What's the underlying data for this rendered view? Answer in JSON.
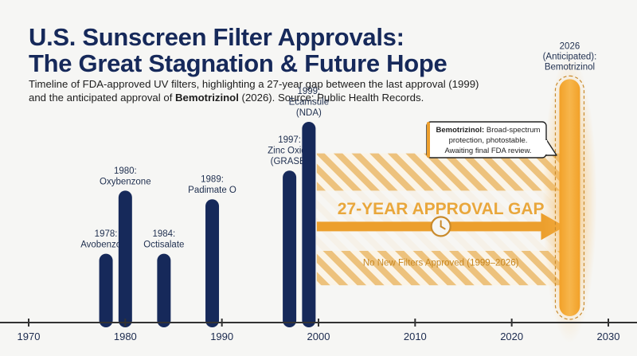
{
  "header": {
    "title_line1": "U.S. Sunscreen Filter Approvals:",
    "title_line2": "The Great Stagnation & Future Hope",
    "subtitle_line1": "Timeline of FDA-approved UV filters, highlighting a 27-year gap between the last approval (1999)",
    "subtitle_line2_pre": "and the anticipated approval of ",
    "subtitle_line2_bold": "Bemotrizinol",
    "subtitle_line2_post": " (2026). Source: Public Health Records."
  },
  "chart_data": {
    "type": "bar",
    "xlim": [
      1970,
      2030
    ],
    "x_ticks": [
      1970,
      1980,
      1990,
      2000,
      2010,
      2020,
      2030
    ],
    "approvals": [
      {
        "year": 1978,
        "label": [
          "1978:",
          "Avobenzone"
        ],
        "value": 0.24
      },
      {
        "year": 1980,
        "label": [
          "1980:",
          "Oxybenzone"
        ],
        "value": 0.46
      },
      {
        "year": 1984,
        "label": [
          "1984:",
          "Octisalate"
        ],
        "value": 0.24
      },
      {
        "year": 1989,
        "label": [
          "1989:",
          "Padimate O"
        ],
        "value": 0.43
      },
      {
        "year": 1997,
        "label": [
          "1997:",
          "Zinc Oxide",
          "(GRASE)"
        ],
        "value": 0.53
      },
      {
        "year": 1999,
        "label": [
          "1999:",
          "Ecamsule",
          "(NDA)"
        ],
        "value": 0.7
      }
    ],
    "anticipated": {
      "year": 2026,
      "label": [
        "2026",
        "(Anticipated):",
        "Bemotrizinol"
      ],
      "value": 0.86
    },
    "gap": {
      "start": 1999,
      "end": 2026,
      "title": "27-YEAR APPROVAL GAP",
      "subtitle": "No New Filters Approved (1999–2026)"
    },
    "callout": {
      "bold": "Bemotrizinol:",
      "line1_rest": " Broad-spectrum",
      "line2": "protection, photostable.",
      "line3": "Awaiting final FDA review."
    },
    "colors": {
      "bar": "#16295a",
      "accent": "#ec9f2d",
      "stripe": "#edc27d",
      "axis": "#333333"
    }
  }
}
